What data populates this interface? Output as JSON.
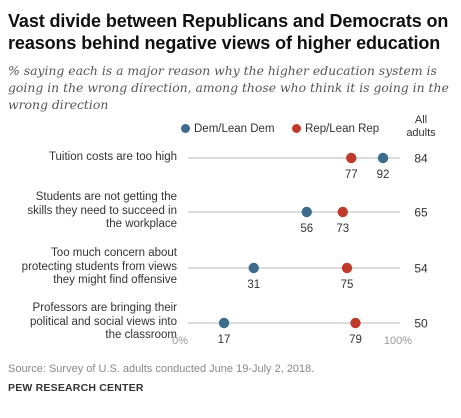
{
  "title": "Vast divide between Republicans and Democrats on reasons behind negative views of higher education",
  "subtitle": "% saying each is a major reason why the higher education system is going in the wrong direction, among those who think it is going in the wrong direction",
  "legend": {
    "dem": "Dem/Lean Dem",
    "rep": "Rep/Lean Rep",
    "all_adults": [
      "All",
      "adults"
    ]
  },
  "colors": {
    "dem": "#3d6b8e",
    "rep": "#c0392b",
    "line": "#cfcfcf"
  },
  "chart_data": {
    "type": "dot",
    "xlim": [
      0,
      100
    ],
    "x_tick_labels": [
      "0%",
      "100%"
    ],
    "series": [
      {
        "name": "Dem/Lean Dem",
        "key": "dem"
      },
      {
        "name": "Rep/Lean Rep",
        "key": "rep"
      }
    ],
    "rows": [
      {
        "label": [
          "Tuition costs are too high"
        ],
        "dem": 92,
        "rep": 77,
        "all": 84
      },
      {
        "label": [
          "Students are not getting the",
          "skills they need to succeed in",
          "the workplace"
        ],
        "dem": 56,
        "rep": 73,
        "all": 65
      },
      {
        "label": [
          "Too much concern about",
          "protecting students from views",
          "they might find offensive"
        ],
        "dem": 31,
        "rep": 75,
        "all": 54
      },
      {
        "label": [
          "Professors are bringing their",
          "political and social views into",
          "the classroom"
        ],
        "dem": 17,
        "rep": 79,
        "all": 50
      }
    ]
  },
  "source": "Source: Survey of U.S. adults conducted June 19-July 2, 2018.",
  "org": "PEW RESEARCH CENTER"
}
